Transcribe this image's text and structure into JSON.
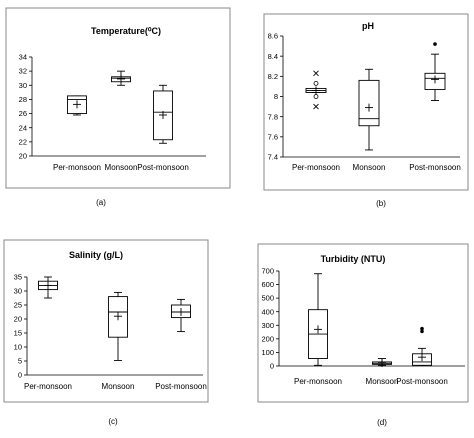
{
  "chart_data": [
    {
      "type": "box",
      "title": "Temperature(⁰C)",
      "caption": "(a)",
      "categories": [
        "Per-monsoon",
        "Monsoon",
        "Post-monsoon"
      ],
      "ylim": [
        20,
        34
      ],
      "yticks": [
        20,
        22,
        24,
        26,
        28,
        30,
        32,
        34
      ],
      "boxes": [
        {
          "min": 25.8,
          "q1": 26.0,
          "median": 28.0,
          "q3": 28.5,
          "max": 28.5,
          "mean": 27.3,
          "outliers": []
        },
        {
          "min": 30.0,
          "q1": 30.5,
          "median": 31.0,
          "q3": 31.2,
          "max": 32.0,
          "mean": 30.9,
          "outliers": []
        },
        {
          "min": 21.8,
          "q1": 22.3,
          "median": 26.2,
          "q3": 29.2,
          "max": 30.0,
          "mean": 25.8,
          "outliers": []
        }
      ]
    },
    {
      "type": "box",
      "title": "pH",
      "caption": "(b)",
      "categories": [
        "Per-monsoon",
        "Monsoon",
        "Post-monsoon"
      ],
      "ylim": [
        7.4,
        8.6
      ],
      "yticks": [
        "7.4",
        "7.6",
        "7.8",
        "8",
        "8.2",
        "8.4",
        "8.6"
      ],
      "boxes": [
        {
          "min": 8.04,
          "q1": 8.04,
          "median": 8.06,
          "q3": 8.08,
          "max": 8.08,
          "mean": 8.06,
          "outliers": [
            7.9,
            8.0,
            8.13,
            8.23
          ]
        },
        {
          "min": 7.47,
          "q1": 7.71,
          "median": 7.78,
          "q3": 8.16,
          "max": 8.27,
          "mean": 7.89,
          "outliers": []
        },
        {
          "min": 7.96,
          "q1": 8.07,
          "median": 8.18,
          "q3": 8.23,
          "max": 8.42,
          "mean": 8.17,
          "outliers": [
            8.52
          ]
        }
      ]
    },
    {
      "type": "box",
      "title": "Salinity (g/L)",
      "caption": "(c)",
      "categories": [
        "Per-monsoon",
        "Monsoon",
        "Post-monsoon"
      ],
      "ylim": [
        0,
        35
      ],
      "yticks": [
        0,
        5,
        10,
        15,
        20,
        25,
        30,
        35
      ],
      "boxes": [
        {
          "min": 27.5,
          "q1": 30.5,
          "median": 32.0,
          "q3": 33.5,
          "max": 35.0,
          "mean": 32.0,
          "outliers": []
        },
        {
          "min": 5.2,
          "q1": 13.5,
          "median": 22.5,
          "q3": 28.0,
          "max": 29.5,
          "mean": 21.0,
          "outliers": []
        },
        {
          "min": 15.5,
          "q1": 20.5,
          "median": 22.5,
          "q3": 25.0,
          "max": 27.0,
          "mean": 22.5,
          "outliers": []
        }
      ]
    },
    {
      "type": "box",
      "title": "Turbidity (NTU)",
      "caption": "(d)",
      "categories": [
        "Per-monsoon",
        "Monsoon",
        "Post-monsoon"
      ],
      "ylim": [
        0,
        700
      ],
      "yticks": [
        0,
        100,
        200,
        300,
        400,
        500,
        600,
        700
      ],
      "boxes": [
        {
          "min": 5,
          "q1": 55,
          "median": 235,
          "q3": 415,
          "max": 680,
          "mean": 270,
          "outliers": []
        },
        {
          "min": 5,
          "q1": 12,
          "median": 20,
          "q3": 30,
          "max": 55,
          "mean": 22,
          "outliers": []
        },
        {
          "min": 5,
          "q1": 5,
          "median": 30,
          "q3": 90,
          "max": 130,
          "mean": 65,
          "outliers": [
            255,
            275
          ]
        }
      ]
    }
  ]
}
